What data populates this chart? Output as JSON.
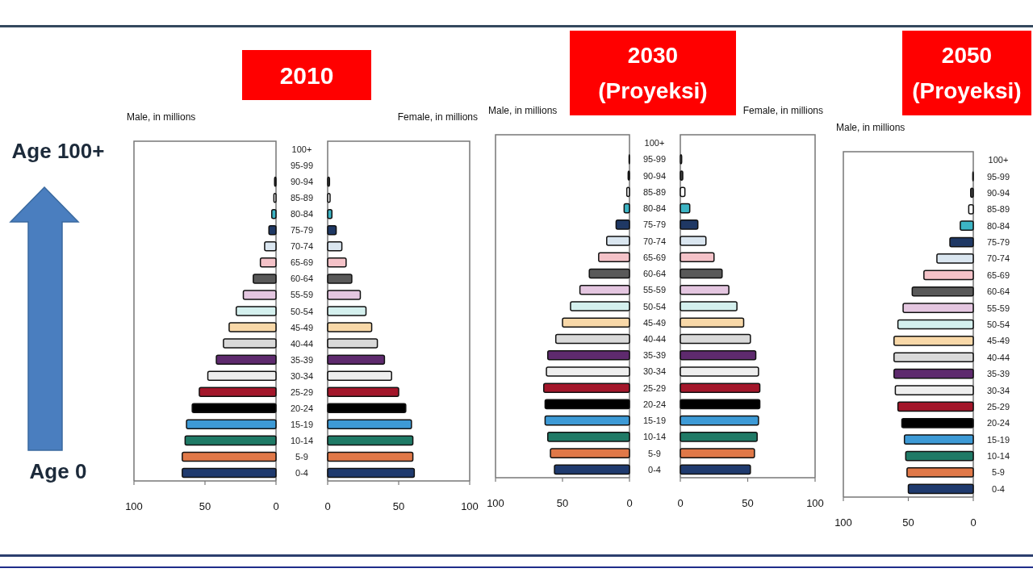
{
  "chart_data": [
    {
      "type": "bar",
      "orientation": "horizontal",
      "title": "2010",
      "xlabel": "Male, in millions",
      "categories": [
        "100+",
        "95-99",
        "90-94",
        "85-89",
        "80-84",
        "75-79",
        "70-74",
        "65-69",
        "60-64",
        "55-59",
        "50-54",
        "45-49",
        "40-44",
        "35-39",
        "30-34",
        "25-29",
        "20-24",
        "15-19",
        "10-14",
        "5-9",
        "0-4"
      ],
      "values": [
        null,
        null,
        1,
        1.5,
        3,
        5,
        8,
        11,
        16,
        23,
        28,
        33,
        37,
        42,
        48,
        54,
        59,
        63,
        64,
        66,
        66
      ],
      "colors": [
        null,
        null,
        "#404040",
        "#ffffff",
        "#3cb4c4",
        "#1f3864",
        "#dae6f0",
        "#f4c2c8",
        "#595959",
        "#e4c6e0",
        "#d4f0ee",
        "#f8d8a8",
        "#d9d9d9",
        "#5e2a6e",
        "#eeeeee",
        "#a3162a",
        "#000000",
        "#3d9ad6",
        "#1f7a66",
        "#e07848",
        "#1f3a6e"
      ],
      "xlim": [
        100,
        0
      ],
      "xticks": [
        100,
        50,
        0
      ],
      "annotations": [
        "Age 100+",
        "Age 0"
      ]
    },
    {
      "type": "bar",
      "orientation": "horizontal",
      "xlabel": "Female, in millions",
      "categories": [
        null,
        null,
        null,
        null,
        null,
        null,
        null,
        null,
        null,
        null,
        null,
        null,
        null,
        null,
        null,
        null,
        null,
        null,
        null,
        null,
        null
      ],
      "values": [
        null,
        null,
        1.3,
        1.7,
        3,
        6,
        10,
        13,
        17,
        23,
        27,
        31,
        35,
        40,
        45,
        50,
        55,
        59,
        60,
        60,
        61
      ],
      "colors": [
        null,
        null,
        "#404040",
        "#ffffff",
        "#3cb4c4",
        "#1f3864",
        "#dae6f0",
        "#f4c2c8",
        "#595959",
        "#e4c6e0",
        "#d4f0ee",
        "#f8d8a8",
        "#d9d9d9",
        "#5e2a6e",
        "#eeeeee",
        "#a3162a",
        "#000000",
        "#3d9ad6",
        "#1f7a66",
        "#e07848",
        "#1f3a6e"
      ],
      "xlim": [
        0,
        100
      ],
      "xticks": [
        0,
        50,
        100
      ]
    },
    {
      "type": "bar",
      "orientation": "horizontal",
      "title": "2030",
      "subtitle": "(Proyeksi)",
      "xlabel": "Male, in millions",
      "categories": [
        "100+",
        "95-99",
        "90-94",
        "85-89",
        "80-84",
        "75-79",
        "70-74",
        "65-69",
        "60-64",
        "55-59",
        "50-54",
        "45-49",
        "40-44",
        "35-39",
        "30-34",
        "25-29",
        "20-24",
        "15-19",
        "10-14",
        "5-9",
        "0-4"
      ],
      "values": [
        null,
        0.3,
        1,
        2,
        4,
        10,
        17,
        23,
        30,
        37,
        44,
        50,
        55,
        61,
        62,
        64,
        63,
        63,
        61,
        59,
        56
      ],
      "colors": [
        null,
        "#ffffff",
        "#404040",
        "#ffffff",
        "#3cb4c4",
        "#1f3864",
        "#dae6f0",
        "#f4c2c8",
        "#595959",
        "#e4c6e0",
        "#d4f0ee",
        "#f8d8a8",
        "#d9d9d9",
        "#5e2a6e",
        "#eeeeee",
        "#a3162a",
        "#000000",
        "#3d9ad6",
        "#1f7a66",
        "#e07848",
        "#1f3a6e"
      ],
      "xlim": [
        100,
        0
      ],
      "xticks": [
        100,
        50,
        0
      ]
    },
    {
      "type": "bar",
      "orientation": "horizontal",
      "xlabel": "Female, in millions",
      "categories": [
        null,
        null,
        null,
        null,
        null,
        null,
        null,
        null,
        null,
        null,
        null,
        null,
        null,
        null,
        null,
        null,
        null,
        null,
        null,
        null,
        null
      ],
      "values": [
        null,
        1,
        1.8,
        3.4,
        7,
        13,
        19,
        25,
        31,
        36,
        42,
        47,
        52,
        56,
        58,
        59,
        59,
        58,
        57,
        55,
        52
      ],
      "colors": [
        null,
        "#ffffff",
        "#404040",
        "#ffffff",
        "#3cb4c4",
        "#1f3864",
        "#dae6f0",
        "#f4c2c8",
        "#595959",
        "#e4c6e0",
        "#d4f0ee",
        "#f8d8a8",
        "#d9d9d9",
        "#5e2a6e",
        "#eeeeee",
        "#a3162a",
        "#000000",
        "#3d9ad6",
        "#1f7a66",
        "#e07848",
        "#1f3a6e"
      ],
      "xlim": [
        0,
        100
      ],
      "xticks": [
        0,
        50,
        100
      ]
    },
    {
      "type": "bar",
      "orientation": "horizontal",
      "title": "2050",
      "subtitle": "(Proyeksi)",
      "xlabel": "Male, in millions",
      "categories": [
        "100+",
        "95-99",
        "90-94",
        "85-89",
        "80-84",
        "75-79",
        "70-74",
        "65-69",
        "60-64",
        "55-59",
        "50-54",
        "45-49",
        "40-44",
        "35-39",
        "30-34",
        "25-29",
        "20-24",
        "15-19",
        "10-14",
        "5-9",
        "0-4"
      ],
      "values": [
        null,
        0.4,
        2,
        3.5,
        10,
        18,
        28,
        38,
        47,
        54,
        58,
        61,
        61,
        61,
        60,
        58,
        55,
        53,
        52,
        51,
        50
      ],
      "colors": [
        null,
        "#ffffff",
        "#404040",
        "#ffffff",
        "#3cb4c4",
        "#1f3864",
        "#dae6f0",
        "#f4c2c8",
        "#595959",
        "#e4c6e0",
        "#d4f0ee",
        "#f8d8a8",
        "#d9d9d9",
        "#5e2a6e",
        "#eeeeee",
        "#a3162a",
        "#000000",
        "#3d9ad6",
        "#1f7a66",
        "#e07848",
        "#1f3a6e"
      ],
      "xlim": [
        100,
        0
      ],
      "xticks": [
        100,
        50,
        0
      ]
    }
  ]
}
